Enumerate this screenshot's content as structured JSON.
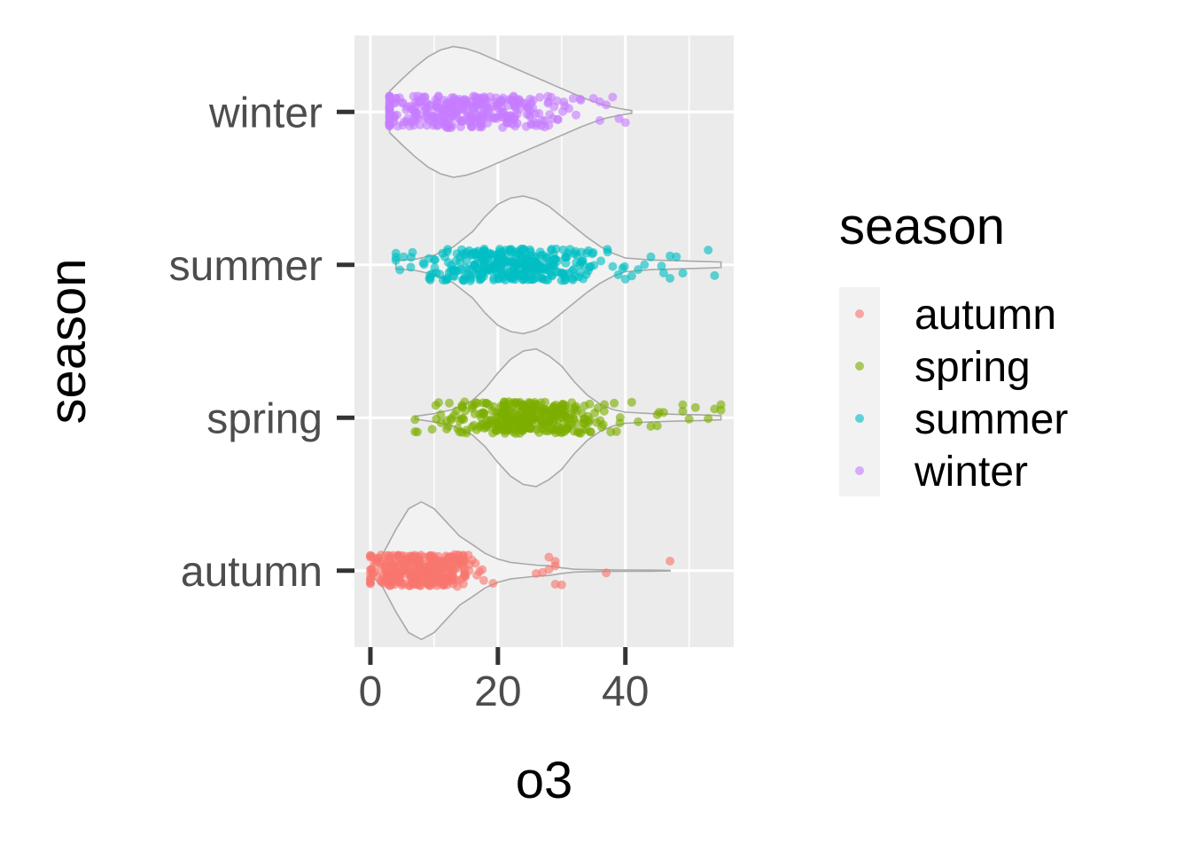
{
  "chart_data": {
    "type": "scatter",
    "subtype": "violin-jitter",
    "xlabel": "o3",
    "ylabel": "season",
    "xlim": [
      -2.5,
      57
    ],
    "x_ticks": [
      0,
      20,
      40
    ],
    "categories": [
      "autumn",
      "spring",
      "summer",
      "winter"
    ],
    "grid": true,
    "legend": {
      "title": "season",
      "placement": "right",
      "entries": [
        "autumn",
        "spring",
        "summer",
        "winter"
      ]
    },
    "colors": {
      "autumn": "#F8766D",
      "spring": "#7CAE00",
      "summer": "#00BFC4",
      "winter": "#C77CFF",
      "panel_bg": "#EBEBEB",
      "violin_fill": "#F2F2F2",
      "violin_line": "#A9A9A9"
    },
    "series": [
      {
        "name": "autumn",
        "range": [
          0,
          47
        ],
        "violin": [
          [
            0,
            0.05
          ],
          [
            2,
            0.25
          ],
          [
            4,
            0.6
          ],
          [
            6,
            0.9
          ],
          [
            8,
            1.0
          ],
          [
            10,
            0.9
          ],
          [
            12,
            0.7
          ],
          [
            14,
            0.5
          ],
          [
            16,
            0.38
          ],
          [
            18,
            0.25
          ],
          [
            20,
            0.17
          ],
          [
            22,
            0.12
          ],
          [
            24,
            0.1
          ],
          [
            26,
            0.08
          ],
          [
            28,
            0.07
          ],
          [
            30,
            0.04
          ],
          [
            32,
            0.02
          ],
          [
            36,
            0.012
          ],
          [
            40,
            0.01
          ],
          [
            44,
            0.008
          ],
          [
            47,
            0.005
          ]
        ],
        "n_points": 330,
        "center": 8,
        "spread": 4.5,
        "outliers": [
          26,
          27,
          28,
          28,
          29,
          29,
          29,
          30,
          37,
          47
        ]
      },
      {
        "name": "spring",
        "range": [
          7,
          55
        ],
        "violin": [
          [
            7,
            0.02
          ],
          [
            10,
            0.06
          ],
          [
            13,
            0.12
          ],
          [
            16,
            0.25
          ],
          [
            18,
            0.42
          ],
          [
            20,
            0.65
          ],
          [
            22,
            0.85
          ],
          [
            24,
            0.97
          ],
          [
            26,
            1.0
          ],
          [
            28,
            0.9
          ],
          [
            30,
            0.75
          ],
          [
            32,
            0.52
          ],
          [
            34,
            0.33
          ],
          [
            36,
            0.2
          ],
          [
            38,
            0.12
          ],
          [
            40,
            0.08
          ],
          [
            44,
            0.06
          ],
          [
            48,
            0.05
          ],
          [
            52,
            0.04
          ],
          [
            55,
            0.03
          ]
        ],
        "n_points": 330,
        "center": 24,
        "spread": 6.5,
        "outliers": [
          41,
          42,
          44,
          45,
          45,
          46,
          49,
          49,
          50,
          51,
          53,
          54,
          55,
          55
        ]
      },
      {
        "name": "summer",
        "range": [
          4,
          55
        ],
        "violin": [
          [
            4,
            0.06
          ],
          [
            7,
            0.08
          ],
          [
            10,
            0.14
          ],
          [
            13,
            0.26
          ],
          [
            16,
            0.48
          ],
          [
            18,
            0.7
          ],
          [
            20,
            0.88
          ],
          [
            22,
            0.97
          ],
          [
            24,
            1.0
          ],
          [
            26,
            0.95
          ],
          [
            28,
            0.85
          ],
          [
            30,
            0.7
          ],
          [
            32,
            0.55
          ],
          [
            34,
            0.4
          ],
          [
            36,
            0.27
          ],
          [
            38,
            0.17
          ],
          [
            40,
            0.1
          ],
          [
            44,
            0.07
          ],
          [
            48,
            0.06
          ],
          [
            52,
            0.05
          ],
          [
            55,
            0.04
          ]
        ],
        "n_points": 340,
        "center": 22,
        "spread": 7.5,
        "outliers": [
          40,
          41,
          42,
          43,
          44,
          46,
          47,
          47,
          48,
          49,
          53,
          54
        ]
      },
      {
        "name": "winter",
        "range": [
          3,
          41
        ],
        "violin": [
          [
            3,
            0.3
          ],
          [
            5,
            0.48
          ],
          [
            7,
            0.65
          ],
          [
            9,
            0.8
          ],
          [
            11,
            0.9
          ],
          [
            13,
            0.95
          ],
          [
            15,
            0.92
          ],
          [
            17,
            0.86
          ],
          [
            19,
            0.78
          ],
          [
            21,
            0.7
          ],
          [
            23,
            0.62
          ],
          [
            25,
            0.54
          ],
          [
            27,
            0.46
          ],
          [
            29,
            0.38
          ],
          [
            31,
            0.3
          ],
          [
            33,
            0.22
          ],
          [
            35,
            0.15
          ],
          [
            37,
            0.09
          ],
          [
            39,
            0.05
          ],
          [
            41,
            0.02
          ]
        ],
        "n_points": 330,
        "center": 14,
        "spread": 8,
        "outliers": [
          33,
          35,
          36,
          36,
          37,
          38,
          39,
          40
        ]
      }
    ]
  }
}
